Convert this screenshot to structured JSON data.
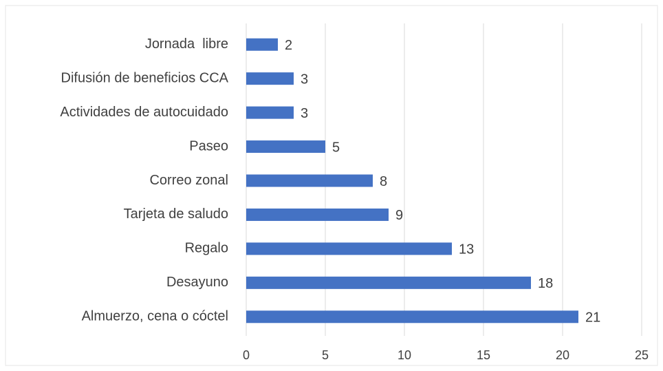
{
  "chart_data": {
    "type": "bar",
    "orientation": "horizontal",
    "categories": [
      "Jornada  libre",
      "Difusión de beneficios CCA",
      "Actividades de autocuidado",
      "Paseo",
      "Correo zonal",
      "Tarjeta de saludo",
      "Regalo",
      "Desayuno",
      "Almuerzo, cena o cóctel"
    ],
    "values": [
      2,
      3,
      3,
      5,
      8,
      9,
      13,
      18,
      21
    ],
    "color": "#4472c4",
    "xlim": [
      0,
      25
    ],
    "xticks": [
      0,
      5,
      10,
      15,
      20,
      25
    ],
    "grid": true
  }
}
